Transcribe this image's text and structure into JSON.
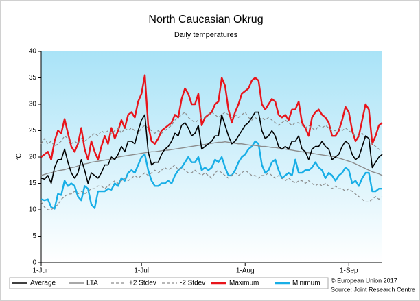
{
  "chart_data": {
    "type": "line",
    "title": "North Caucasian Okrug",
    "subtitle": "Daily temperatures",
    "y_label": "°C",
    "annotations": [
      "© European Union 2017",
      "Source: Joint Research Centre"
    ],
    "x": [
      0,
      1,
      2,
      3,
      4,
      5,
      6,
      7,
      8,
      9,
      10,
      11,
      12,
      13,
      14,
      15,
      16,
      17,
      18,
      19,
      20,
      21,
      22,
      23,
      24,
      25,
      26,
      27,
      28,
      29,
      30,
      31,
      32,
      33,
      34,
      35,
      36,
      37,
      38,
      39,
      40,
      41,
      42,
      43,
      44,
      45,
      46,
      47,
      48,
      49,
      50,
      51,
      52,
      53,
      54,
      55,
      56,
      57,
      58,
      59,
      60,
      61,
      62,
      63,
      64,
      65,
      66,
      67,
      68,
      69,
      70,
      71,
      72,
      73,
      74,
      75,
      76,
      77,
      78,
      79,
      80,
      81,
      82,
      83,
      84,
      85,
      86,
      87,
      88,
      89,
      90,
      91,
      92,
      93,
      94,
      95,
      96,
      97,
      98,
      99,
      100,
      101,
      102
    ],
    "xlim": [
      0,
      102
    ],
    "xticks": [
      {
        "value": 0,
        "label": "1-Jun"
      },
      {
        "value": 30,
        "label": "1-Jul"
      },
      {
        "value": 61,
        "label": "1-Aug"
      },
      {
        "value": 92,
        "label": "1-Sep"
      }
    ],
    "ylim": [
      0,
      40
    ],
    "yticks": [
      0,
      5,
      10,
      15,
      20,
      25,
      30,
      35,
      40
    ],
    "series": [
      {
        "name": "Average",
        "color": "#000000",
        "width": 1.6,
        "dashed": false,
        "values": [
          16,
          15.8,
          16.5,
          15,
          18,
          19.5,
          19.5,
          21.5,
          19,
          17,
          16,
          17,
          19.5,
          17.5,
          15,
          17,
          16.5,
          16,
          17,
          18.5,
          18.5,
          20,
          19.5,
          20.5,
          22,
          21,
          23,
          23,
          22.5,
          25,
          27,
          28,
          21,
          18.5,
          19,
          19,
          20.5,
          21.5,
          22,
          23,
          24.5,
          24,
          26,
          26.5,
          25.5,
          24,
          24.5,
          26,
          21.5,
          22,
          22.5,
          23,
          24,
          24,
          28,
          26,
          24,
          22.5,
          23,
          24,
          25,
          26,
          26.5,
          27.5,
          28.5,
          28.5,
          25,
          23.5,
          24,
          25,
          24,
          22,
          21.5,
          22,
          21.5,
          23,
          23,
          24,
          21.5,
          21,
          19.5,
          21.5,
          22,
          22,
          23,
          22,
          21.5,
          19.5,
          20,
          20.5,
          22,
          23,
          22.5,
          20.5,
          19.5,
          20,
          22,
          24,
          23.5,
          18,
          19,
          20,
          20.5
        ]
      },
      {
        "name": "LTA",
        "color": "#8c8c8c",
        "width": 1.4,
        "dashed": false,
        "values": [
          16.5,
          16.7,
          16.9,
          17,
          17.2,
          17.4,
          17.5,
          17.6,
          17.8,
          18,
          18.1,
          18.3,
          18.5,
          18.7,
          18.8,
          19,
          19.1,
          19.2,
          19.3,
          19.4,
          19.5,
          19.6,
          19.8,
          20,
          20.1,
          20.2,
          20.3,
          20.4,
          20.5,
          20.6,
          20.7,
          20.8,
          20.9,
          21,
          21,
          21.1,
          21.2,
          21.3,
          21.3,
          21.4,
          21.5,
          21.6,
          21.7,
          21.8,
          21.9,
          22,
          22.1,
          22.2,
          22.3,
          22.4,
          22.5,
          22.6,
          22.7,
          22.8,
          22.8,
          22.9,
          22.8,
          22.7,
          22.6,
          22.5,
          22.5,
          22.4,
          22.3,
          22.2,
          22.2,
          22.1,
          22,
          22,
          21.9,
          21.8,
          21.8,
          21.7,
          21.6,
          21.5,
          21.4,
          21.3,
          21.2,
          21.1,
          21,
          20.9,
          20.8,
          20.7,
          20.6,
          20.5,
          20.4,
          20.3,
          20.2,
          20.1,
          20,
          19.8,
          19.6,
          19.4,
          19.2,
          19,
          18.7,
          18.4,
          18.1,
          17.8,
          17.5,
          17.2,
          17,
          16.8,
          16.5
        ]
      },
      {
        "name": "+2 Stdev",
        "color": "#8c8c8c",
        "width": 1.2,
        "dashed": true,
        "values": [
          22.5,
          23.5,
          22.5,
          23,
          22,
          22.5,
          23,
          24,
          23.5,
          22.5,
          23,
          22.5,
          23.5,
          23,
          23.5,
          24,
          24.5,
          24,
          25,
          24.5,
          25,
          24.5,
          25,
          25.5,
          24.5,
          25.5,
          25,
          25.5,
          25,
          24.5,
          25.5,
          26,
          25.5,
          25,
          24.5,
          25,
          24.5,
          25,
          25.5,
          26,
          27,
          27.5,
          28,
          28.5,
          27.5,
          27,
          26.5,
          27,
          27.5,
          27.5,
          28,
          28.5,
          28,
          27.5,
          28,
          28.5,
          28,
          27.5,
          28,
          27.5,
          28,
          28.5,
          27.5,
          27,
          27.5,
          27,
          27.5,
          27,
          27.5,
          27,
          26.5,
          26,
          26.5,
          27,
          26.5,
          26,
          26.5,
          26.5,
          26,
          25.5,
          26,
          25.5,
          25,
          26,
          25.5,
          26,
          25.5,
          25,
          25,
          25.5,
          25,
          25.5,
          25,
          24.5,
          24,
          24,
          24.5,
          23.5,
          23.5,
          22.5,
          22,
          21.5,
          21
        ]
      },
      {
        "name": "-2 Stdev",
        "color": "#8c8c8c",
        "width": 1.2,
        "dashed": true,
        "values": [
          11.5,
          10.5,
          10,
          10,
          10.5,
          11,
          12,
          12.5,
          13,
          13,
          13.5,
          13,
          13.5,
          13,
          13.5,
          14,
          14,
          14.5,
          14.5,
          14,
          14.5,
          15,
          15.5,
          15,
          15.5,
          16,
          15.5,
          16,
          16.5,
          16,
          16.5,
          17,
          16.5,
          17,
          17.5,
          17,
          17.5,
          18,
          17.5,
          18,
          18.5,
          17.5,
          18,
          17.5,
          17,
          17,
          17.5,
          17,
          16.5,
          17,
          16.5,
          16,
          17,
          17.5,
          17,
          16.5,
          16,
          16.5,
          17,
          16.5,
          17,
          17.5,
          17,
          16.5,
          16.5,
          16,
          16.5,
          16.5,
          17,
          16.5,
          16,
          16.5,
          16,
          15.5,
          16,
          15.5,
          15,
          15.5,
          15.5,
          15,
          15.5,
          15,
          14.5,
          15,
          14.5,
          15,
          14.5,
          14,
          14.5,
          14,
          14,
          13.5,
          14,
          13.5,
          13,
          12.5,
          12,
          11.5,
          11.5,
          12,
          12.5,
          12,
          12.5
        ]
      },
      {
        "name": "Maximum",
        "color": "#e8141b",
        "width": 2.4,
        "dashed": false,
        "values": [
          20,
          20.5,
          21,
          19.5,
          23,
          25,
          24.5,
          27.2,
          24.5,
          22,
          21,
          22.5,
          25.5,
          21.5,
          19.5,
          23,
          21,
          19.5,
          22,
          24,
          22.5,
          25.5,
          23.5,
          25,
          27,
          25.5,
          28,
          28.5,
          27.5,
          30.5,
          32,
          35.5,
          26,
          23,
          22.5,
          23.5,
          25,
          25.5,
          26,
          26.5,
          28,
          27.5,
          31,
          33,
          32,
          30,
          30,
          32,
          26,
          27.5,
          28,
          28.5,
          30,
          30.5,
          35,
          33.5,
          29,
          26.5,
          28.5,
          30,
          32,
          32.5,
          33,
          34.5,
          35,
          34.5,
          30,
          29,
          30,
          31,
          30.5,
          28,
          27.5,
          28,
          27,
          29,
          29,
          30.5,
          26.5,
          25.5,
          24,
          27.5,
          28.5,
          29,
          28,
          27.5,
          26.5,
          24,
          24,
          25,
          27,
          29.5,
          28.5,
          25,
          23,
          24,
          27,
          30,
          29,
          22.5,
          24,
          26,
          26.5
        ]
      },
      {
        "name": "Minimum",
        "color": "#18aee6",
        "width": 2.4,
        "dashed": false,
        "values": [
          12,
          11.8,
          12,
          10.5,
          10.2,
          13,
          12.8,
          15.5,
          14.5,
          15,
          14.5,
          12.5,
          11.8,
          14.5,
          14,
          11,
          10.3,
          13.5,
          13.5,
          13.5,
          14,
          13.8,
          15,
          14.5,
          16,
          15.5,
          17,
          17.5,
          17,
          18.5,
          20,
          20.5,
          17.5,
          15.5,
          14.5,
          14.5,
          15,
          15,
          15.5,
          15,
          16.5,
          17.5,
          18,
          19,
          20,
          19,
          19,
          20,
          17.5,
          18,
          17.5,
          18,
          19.5,
          19,
          20,
          18,
          16.5,
          16.5,
          17.5,
          19,
          20,
          20.5,
          21.5,
          22,
          23,
          22.5,
          18.5,
          17,
          17.5,
          19,
          19.5,
          17.5,
          16,
          16.5,
          17,
          16.5,
          19.5,
          17,
          17,
          17.5,
          17.5,
          18,
          19,
          18,
          17.5,
          16,
          17,
          16.5,
          15.5,
          16.5,
          17,
          18,
          17.5,
          15,
          15.5,
          14.5,
          16,
          17,
          17,
          13.5,
          13.5,
          14,
          14
        ]
      }
    ]
  }
}
